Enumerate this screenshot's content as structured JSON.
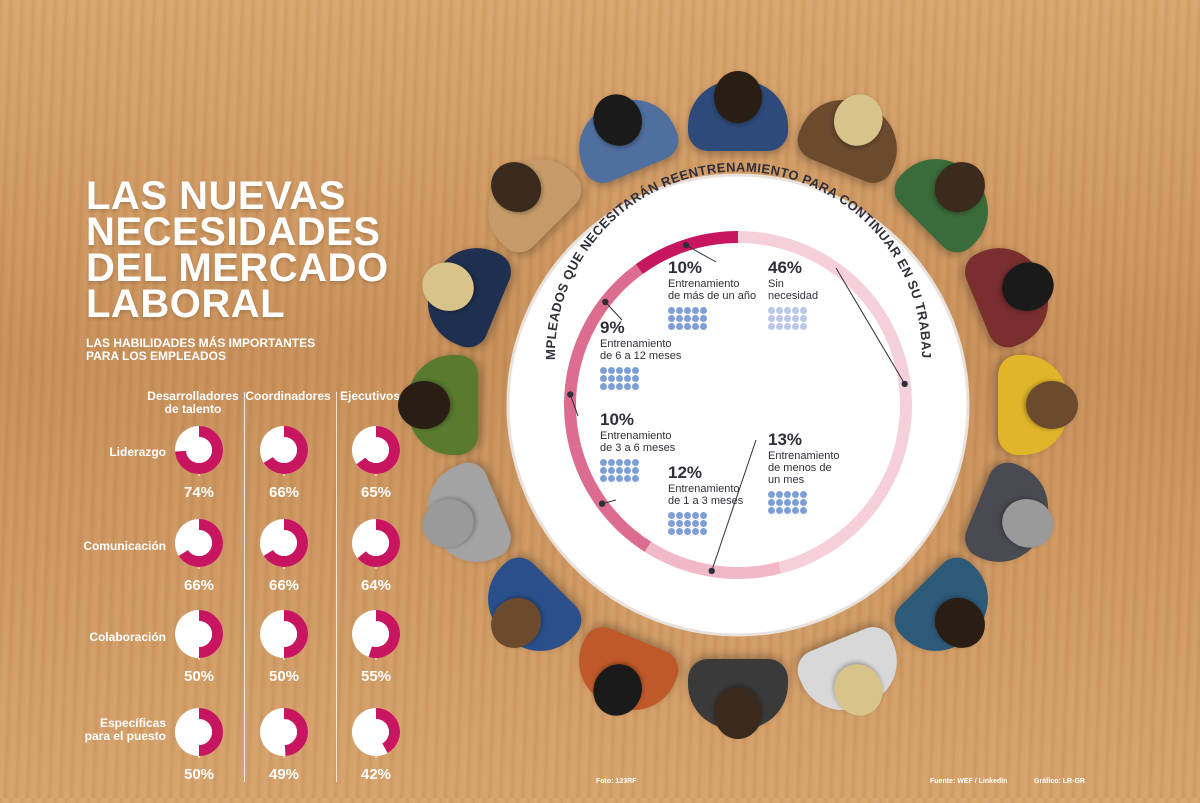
{
  "title_lines": [
    "LAS NUEVAS",
    "NECESIDADES",
    "DEL MERCADO",
    "LABORAL"
  ],
  "subtitle_lines": [
    "LAS HABILIDADES MÁS IMPORTANTES",
    "PARA LOS EMPLEADOS"
  ],
  "colors": {
    "accent": "#c8155f",
    "accent_light": "#f5cfd9",
    "ring_dark": "#c8155f",
    "ring_mid": "#dd6d8f",
    "ring_light": "#f1b8c8",
    "dot": "#7f9fd4",
    "text_dark": "#2f2f3a"
  },
  "chart_data": [
    {
      "type": "pie",
      "title": "",
      "columns": [
        {
          "name_lines": [
            "Desarrolladores",
            "de talento"
          ]
        },
        {
          "name_lines": [
            "Coordinadores"
          ]
        },
        {
          "name_lines": [
            "Ejecutivos"
          ]
        }
      ],
      "rows": [
        {
          "name_lines": [
            "Liderazgo"
          ],
          "values": [
            74,
            66,
            65
          ],
          "labels": [
            "74%",
            "66%",
            "65%"
          ]
        },
        {
          "name_lines": [
            "Comunicación"
          ],
          "values": [
            66,
            66,
            64
          ],
          "labels": [
            "66%",
            "66%",
            "64%"
          ]
        },
        {
          "name_lines": [
            "Colaboración"
          ],
          "values": [
            50,
            50,
            55
          ],
          "labels": [
            "50%",
            "50%",
            "55%"
          ]
        },
        {
          "name_lines": [
            "Específicas",
            "para el puesto"
          ],
          "values": [
            50,
            49,
            42
          ],
          "labels": [
            "50%",
            "49%",
            "42%"
          ]
        }
      ]
    },
    {
      "type": "pie",
      "title": "EMPLEADOS QUE NECESITARÁN REENTRENAMIENTO PARA CONTINUAR EN SU TRABAJO",
      "segments": [
        {
          "value": 10,
          "label": "10%",
          "text_lines": [
            "Entrenamiento",
            "de más de un año"
          ]
        },
        {
          "value": 9,
          "label": "9%",
          "text_lines": [
            "Entrenamiento",
            "de 6 a 12 meses"
          ]
        },
        {
          "value": 10,
          "label": "10%",
          "text_lines": [
            "Entrenamiento",
            "de 3 a 6 meses"
          ]
        },
        {
          "value": 12,
          "label": "12%",
          "text_lines": [
            "Entrenamiento",
            "de 1 a 3 meses"
          ]
        },
        {
          "value": 13,
          "label": "13%",
          "text_lines": [
            "Entrenamiento",
            "de menos de",
            "un mes"
          ]
        },
        {
          "value": 46,
          "label": "46%",
          "text_lines": [
            "Sin",
            "necesidad"
          ]
        }
      ]
    }
  ],
  "credits": {
    "photo": "Foto: 123RF",
    "source": "Fuente: WEF / LinkedIn",
    "graphic": "Gráfico: LR-GR"
  }
}
